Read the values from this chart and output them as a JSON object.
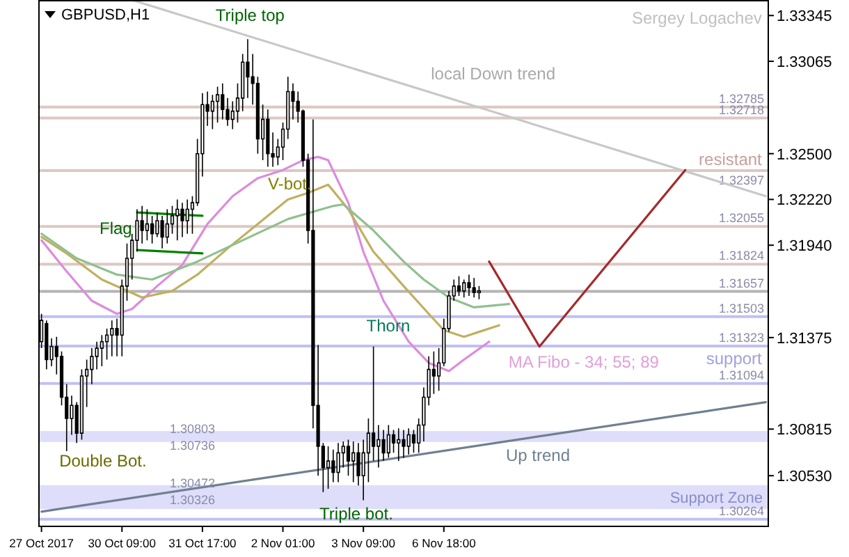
{
  "chart_data": {
    "type": "candlestick",
    "title": "GBPUSD,H1",
    "color": "#000000",
    "categories": [
      "27 Oct 2017",
      null,
      null,
      null,
      null,
      null,
      null,
      null,
      null,
      null,
      null,
      null,
      null,
      null,
      null,
      null,
      "30 Oct 09:00",
      null,
      null,
      null,
      null,
      null,
      null,
      null,
      null,
      null,
      null,
      null,
      null,
      null,
      null,
      null,
      "31 Oct 17:00",
      null,
      null,
      null,
      null,
      null,
      null,
      null,
      null,
      null,
      null,
      null,
      null,
      null,
      null,
      null,
      "2 Nov 01:00",
      null,
      null,
      null,
      null,
      null,
      null,
      null,
      null,
      null,
      null,
      null,
      null,
      null,
      null,
      null,
      "3 Nov 09:00",
      null,
      null,
      null,
      null,
      null,
      null,
      null,
      null,
      null,
      null,
      null,
      null,
      null,
      null,
      null,
      "6 Nov 18:00",
      null,
      null,
      null,
      null,
      null,
      null,
      null,
      null,
      null,
      null,
      null,
      null,
      null,
      null,
      null,
      null,
      null,
      null,
      null,
      null,
      null,
      null,
      null,
      null,
      null,
      null,
      null,
      null,
      null,
      null,
      null,
      null,
      null,
      null,
      null,
      null,
      null,
      null,
      null,
      null,
      null,
      null,
      null,
      null,
      null,
      null,
      null,
      null,
      null,
      null,
      null,
      null,
      null,
      null,
      null,
      null,
      null,
      null,
      null,
      null,
      null,
      null,
      null,
      null
    ],
    "ohlc": [
      [
        1.3135,
        1.3152,
        1.3131,
        1.3148
      ],
      [
        1.3146,
        1.3148,
        1.3118,
        1.3124
      ],
      [
        1.3124,
        1.3137,
        1.312,
        1.3132
      ],
      [
        1.3132,
        1.3138,
        1.3115,
        1.3126
      ],
      [
        1.3126,
        1.3129,
        1.3096,
        1.3101
      ],
      [
        1.3101,
        1.3109,
        1.3068,
        1.3088
      ],
      [
        1.3088,
        1.3102,
        1.3078,
        1.3096
      ],
      [
        1.3096,
        1.3098,
        1.3073,
        1.3079
      ],
      [
        1.3079,
        1.3118,
        1.3075,
        1.3114
      ],
      [
        1.3114,
        1.3124,
        1.3095,
        1.3118
      ],
      [
        1.3118,
        1.3131,
        1.3109,
        1.3126
      ],
      [
        1.3126,
        1.3135,
        1.3118,
        1.3131
      ],
      [
        1.3131,
        1.3139,
        1.312,
        1.3135
      ],
      [
        1.3135,
        1.3143,
        1.3124,
        1.3139
      ],
      [
        1.3139,
        1.3148,
        1.3126,
        1.3143
      ],
      [
        1.3143,
        1.3149,
        1.3126,
        1.3139
      ],
      [
        1.3139,
        1.3173,
        1.3126,
        1.3169
      ],
      [
        1.3169,
        1.3195,
        1.316,
        1.3186
      ],
      [
        1.3186,
        1.3201,
        1.3173,
        1.3197
      ],
      [
        1.3197,
        1.3216,
        1.319,
        1.3209
      ],
      [
        1.3209,
        1.3218,
        1.3195,
        1.3203
      ],
      [
        1.3203,
        1.3216,
        1.3197,
        1.3207
      ],
      [
        1.3207,
        1.3212,
        1.3195,
        1.3201
      ],
      [
        1.3201,
        1.3214,
        1.3199,
        1.3209
      ],
      [
        1.3209,
        1.3212,
        1.3192,
        1.3199
      ],
      [
        1.3199,
        1.3216,
        1.3195,
        1.3207
      ],
      [
        1.3207,
        1.3218,
        1.3201,
        1.3212
      ],
      [
        1.3212,
        1.3222,
        1.3197,
        1.3216
      ],
      [
        1.3216,
        1.322,
        1.3199,
        1.3209
      ],
      [
        1.3209,
        1.3222,
        1.3201,
        1.3216
      ],
      [
        1.3216,
        1.3224,
        1.3201,
        1.322
      ],
      [
        1.322,
        1.3259,
        1.3218,
        1.325
      ],
      [
        1.325,
        1.3287,
        1.3236,
        1.328
      ],
      [
        1.328,
        1.3288,
        1.3267,
        1.3276
      ],
      [
        1.3276,
        1.3286,
        1.3265,
        1.3282
      ],
      [
        1.3282,
        1.3291,
        1.3269,
        1.3286
      ],
      [
        1.3286,
        1.3293,
        1.3271,
        1.3277
      ],
      [
        1.3277,
        1.3284,
        1.3267,
        1.3271
      ],
      [
        1.3271,
        1.3282,
        1.3265,
        1.3276
      ],
      [
        1.3276,
        1.3293,
        1.3269,
        1.3284
      ],
      [
        1.3284,
        1.3311,
        1.3276,
        1.3306
      ],
      [
        1.3306,
        1.332,
        1.3284,
        1.3297
      ],
      [
        1.3297,
        1.3311,
        1.328,
        1.3293
      ],
      [
        1.3293,
        1.3297,
        1.325,
        1.3259
      ],
      [
        1.3259,
        1.328,
        1.3246,
        1.3271
      ],
      [
        1.3271,
        1.3277,
        1.3242,
        1.325
      ],
      [
        1.325,
        1.3263,
        1.3242,
        1.3248
      ],
      [
        1.3248,
        1.3259,
        1.3243,
        1.3254
      ],
      [
        1.3254,
        1.3269,
        1.3246,
        1.3265
      ],
      [
        1.3265,
        1.3297,
        1.3259,
        1.3288
      ],
      [
        1.3288,
        1.3293,
        1.3271,
        1.3282
      ],
      [
        1.3282,
        1.3288,
        1.3269,
        1.3276
      ],
      [
        1.3276,
        1.3277,
        1.3242,
        1.3246
      ],
      [
        1.3246,
        1.325,
        1.3195,
        1.3203
      ],
      [
        1.3203,
        1.3271,
        1.3082,
        1.3096
      ],
      [
        1.3096,
        1.3133,
        1.3053,
        1.3071
      ],
      [
        1.3071,
        1.3073,
        1.3043,
        1.3058
      ],
      [
        1.3058,
        1.3071,
        1.3045,
        1.3062
      ],
      [
        1.3062,
        1.3069,
        1.3049,
        1.3055
      ],
      [
        1.3055,
        1.3073,
        1.3049,
        1.3067
      ],
      [
        1.3067,
        1.3074,
        1.3058,
        1.3071
      ],
      [
        1.3071,
        1.3075,
        1.3053,
        1.3062
      ],
      [
        1.3062,
        1.3074,
        1.3049,
        1.3067
      ],
      [
        1.3067,
        1.3073,
        1.3047,
        1.3053
      ],
      [
        1.3053,
        1.3075,
        1.3038,
        1.3067
      ],
      [
        1.3067,
        1.3088,
        1.3049,
        1.3079
      ],
      [
        1.3079,
        1.3132,
        1.3062,
        1.3071
      ],
      [
        1.3071,
        1.3084,
        1.3058,
        1.3075
      ],
      [
        1.3075,
        1.3081,
        1.3062,
        1.3067
      ],
      [
        1.3067,
        1.3084,
        1.3064,
        1.3078
      ],
      [
        1.3078,
        1.3081,
        1.3067,
        1.3073
      ],
      [
        1.3073,
        1.3082,
        1.3062,
        1.3075
      ],
      [
        1.3075,
        1.3081,
        1.3064,
        1.3071
      ],
      [
        1.3071,
        1.3082,
        1.3066,
        1.3078
      ],
      [
        1.3078,
        1.3081,
        1.3067,
        1.3073
      ],
      [
        1.3073,
        1.3088,
        1.3067,
        1.3084
      ],
      [
        1.3084,
        1.3107,
        1.3074,
        1.3101
      ],
      [
        1.3101,
        1.3126,
        1.3096,
        1.3118
      ],
      [
        1.3118,
        1.3129,
        1.3103,
        1.3114
      ],
      [
        1.3114,
        1.3131,
        1.3105,
        1.3122
      ],
      [
        1.3122,
        1.3149,
        1.312,
        1.3143
      ],
      [
        1.3143,
        1.3166,
        1.3141,
        1.3163
      ],
      [
        1.3163,
        1.3173,
        1.316,
        1.3169
      ],
      [
        1.3169,
        1.3175,
        1.3163,
        1.3166
      ],
      [
        1.3166,
        1.3173,
        1.3162,
        1.3171
      ],
      [
        1.3171,
        1.3176,
        1.3163,
        1.3168
      ],
      [
        1.3168,
        1.3174,
        1.3162,
        1.3165
      ],
      [
        1.3165,
        1.3169,
        1.3161,
        1.3166
      ],
      null,
      null,
      null,
      null,
      null,
      null,
      null,
      null,
      null,
      null,
      null,
      null,
      null,
      null,
      null,
      null,
      null,
      null,
      null,
      null,
      null,
      null,
      null,
      null,
      null,
      null,
      null,
      null,
      null,
      null,
      null,
      null,
      null,
      null,
      null,
      null,
      null,
      null,
      null,
      null,
      null,
      null,
      null,
      null,
      null,
      null,
      null,
      null,
      null,
      null,
      null,
      null,
      null,
      null,
      null,
      null,
      null
    ],
    "series": [
      {
        "type": "line",
        "color": "#dc8cdc",
        "values": [
          1.3197,
          null,
          null,
          null,
          null,
          1.3178,
          null,
          null,
          null,
          null,
          1.316,
          null,
          null,
          null,
          null,
          1.3152,
          null,
          null,
          1.3155,
          null,
          null,
          null,
          null,
          1.3169,
          null,
          null,
          null,
          null,
          1.3182,
          null,
          null,
          null,
          null,
          1.3207,
          null,
          null,
          null,
          null,
          1.3224,
          null,
          null,
          null,
          null,
          1.3235,
          null,
          null,
          null,
          null,
          1.324,
          null,
          null,
          null,
          1.3246,
          null,
          null,
          1.3248,
          null,
          1.3246,
          null,
          null,
          null,
          1.322,
          null,
          null,
          1.319,
          null,
          null,
          null,
          1.316,
          null,
          null,
          null,
          null,
          1.3135,
          null,
          null,
          null,
          1.3122,
          null,
          null,
          null,
          1.3117,
          null,
          null,
          1.3124,
          null,
          null,
          null,
          null,
          1.3135,
          null,
          null,
          null,
          null,
          null,
          null,
          null,
          null,
          null,
          null,
          null,
          null,
          null,
          null,
          null,
          null,
          null,
          null,
          null,
          null,
          null,
          null,
          null,
          null,
          null,
          null,
          null,
          null,
          null,
          null,
          null,
          null,
          null,
          null,
          null,
          null,
          null,
          null,
          null,
          null,
          null,
          null,
          null,
          null,
          null,
          null,
          null,
          null,
          null,
          null,
          null,
          null,
          null,
          null,
          null
        ]
      },
      {
        "type": "line",
        "color": "#c0b060",
        "values": [
          1.3199,
          null,
          null,
          null,
          null,
          1.3189,
          null,
          null,
          null,
          null,
          null,
          null,
          1.3173,
          null,
          null,
          null,
          null,
          null,
          null,
          null,
          1.3162,
          null,
          null,
          null,
          null,
          null,
          1.3166,
          null,
          null,
          null,
          null,
          1.3176,
          null,
          null,
          null,
          null,
          null,
          1.3192,
          null,
          null,
          null,
          null,
          null,
          1.3207,
          null,
          null,
          null,
          null,
          null,
          1.3222,
          null,
          null,
          null,
          1.3226,
          null,
          null,
          null,
          1.3231,
          null,
          null,
          null,
          1.3216,
          null,
          null,
          null,
          null,
          1.319,
          null,
          null,
          null,
          null,
          null,
          1.3169,
          null,
          null,
          null,
          null,
          1.3152,
          null,
          null,
          1.3142,
          null,
          null,
          null,
          1.3138,
          null,
          null,
          1.3141,
          null,
          null,
          null,
          1.3145,
          null,
          null,
          null,
          null,
          null,
          null,
          null,
          null,
          null,
          null,
          null,
          null,
          null,
          null,
          null,
          null,
          null,
          null,
          null,
          null,
          null,
          null,
          null,
          null,
          null,
          null,
          null,
          null,
          null,
          null,
          null,
          null,
          null,
          null,
          null,
          null,
          null,
          null,
          null,
          null,
          null,
          null,
          null,
          null,
          null,
          null,
          null,
          null,
          null,
          null,
          null,
          null,
          null
        ]
      },
      {
        "type": "line",
        "color": "#90c090",
        "values": [
          1.3201,
          null,
          null,
          null,
          null,
          null,
          null,
          1.3186,
          null,
          null,
          null,
          null,
          null,
          null,
          null,
          1.3176,
          null,
          null,
          null,
          null,
          null,
          null,
          1.3173,
          null,
          null,
          null,
          null,
          null,
          null,
          null,
          null,
          1.3184,
          null,
          null,
          null,
          null,
          null,
          null,
          null,
          null,
          1.3197,
          null,
          null,
          null,
          null,
          null,
          null,
          null,
          null,
          1.321,
          null,
          null,
          null,
          null,
          null,
          null,
          null,
          null,
          1.3218,
          null,
          1.3219,
          null,
          null,
          null,
          null,
          null,
          1.3203,
          null,
          null,
          null,
          null,
          null,
          1.3184,
          null,
          null,
          null,
          1.3173,
          null,
          null,
          null,
          null,
          1.3162,
          null,
          null,
          null,
          null,
          1.3156,
          null,
          null,
          null,
          null,
          null,
          null,
          1.3158,
          null,
          null,
          null,
          null,
          null,
          null,
          null,
          null,
          null,
          null,
          null,
          null,
          null,
          null,
          null,
          null,
          null,
          null,
          null,
          null,
          null,
          null,
          null,
          null,
          null,
          null,
          null,
          null,
          null,
          null,
          null,
          null,
          null,
          null,
          null,
          null,
          null,
          null,
          null,
          null,
          null,
          null,
          null,
          null,
          null,
          null,
          null,
          null,
          null,
          null,
          null
        ]
      },
      {
        "type": "line",
        "color": "#c8c8c8",
        "values": [
          null,
          null,
          null,
          null,
          null,
          null,
          null,
          null,
          null,
          null,
          null,
          null,
          null,
          null,
          null,
          null,
          null,
          null,
          1.3344,
          null,
          null,
          null,
          null,
          null,
          null,
          null,
          null,
          null,
          null,
          null,
          null,
          null,
          null,
          null,
          null,
          null,
          null,
          null,
          null,
          null,
          null,
          null,
          null,
          null,
          null,
          null,
          null,
          null,
          null,
          null,
          null,
          null,
          null,
          null,
          null,
          null,
          null,
          null,
          null,
          null,
          null,
          null,
          null,
          null,
          null,
          null,
          null,
          null,
          null,
          null,
          null,
          null,
          null,
          null,
          null,
          null,
          null,
          null,
          null,
          null,
          null,
          null,
          null,
          null,
          null,
          null,
          null,
          null,
          null,
          null,
          null,
          null,
          null,
          null,
          null,
          null,
          null,
          null,
          null,
          null,
          null,
          null,
          null,
          null,
          null,
          null,
          null,
          null,
          null,
          null,
          null,
          null,
          null,
          null,
          null,
          null,
          null,
          null,
          null,
          null,
          null,
          null,
          null,
          null,
          null,
          null,
          null,
          null,
          null,
          null,
          null,
          null,
          null,
          null,
          null,
          null,
          null,
          null,
          null,
          null,
          null,
          null,
          null,
          null,
          1.3224
        ]
      },
      {
        "type": "line",
        "color": "#708090",
        "values": [
          1.3031,
          null,
          null,
          null,
          null,
          null,
          null,
          null,
          null,
          null,
          null,
          null,
          null,
          null,
          null,
          null,
          null,
          null,
          null,
          null,
          null,
          null,
          null,
          null,
          null,
          null,
          null,
          null,
          null,
          null,
          null,
          null,
          null,
          null,
          null,
          null,
          null,
          null,
          null,
          null,
          null,
          null,
          null,
          null,
          null,
          null,
          null,
          null,
          null,
          null,
          null,
          null,
          null,
          null,
          null,
          null,
          null,
          null,
          null,
          null,
          null,
          null,
          null,
          null,
          null,
          null,
          null,
          null,
          null,
          null,
          null,
          null,
          null,
          null,
          null,
          null,
          null,
          null,
          null,
          null,
          null,
          null,
          null,
          null,
          null,
          null,
          null,
          null,
          null,
          null,
          null,
          null,
          null,
          null,
          null,
          null,
          null,
          null,
          null,
          null,
          null,
          null,
          null,
          null,
          null,
          null,
          null,
          null,
          null,
          null,
          null,
          null,
          null,
          null,
          null,
          null,
          null,
          null,
          null,
          null,
          null,
          null,
          null,
          null,
          null,
          null,
          null,
          null,
          null,
          null,
          null,
          null,
          null,
          null,
          null,
          null,
          null,
          null,
          null,
          null,
          null,
          null,
          null,
          null,
          1.3098
        ]
      },
      {
        "type": "line",
        "color": "#a52a2a",
        "values": [
          null,
          null,
          null,
          null,
          null,
          null,
          null,
          null,
          null,
          null,
          null,
          null,
          null,
          null,
          null,
          null,
          null,
          null,
          null,
          null,
          null,
          null,
          null,
          null,
          null,
          null,
          null,
          null,
          null,
          null,
          null,
          null,
          null,
          null,
          null,
          null,
          null,
          null,
          null,
          null,
          null,
          null,
          null,
          null,
          null,
          null,
          null,
          null,
          null,
          null,
          null,
          null,
          null,
          null,
          null,
          null,
          null,
          null,
          null,
          null,
          null,
          null,
          null,
          null,
          null,
          null,
          null,
          null,
          null,
          null,
          null,
          null,
          null,
          null,
          null,
          null,
          null,
          null,
          null,
          null,
          null,
          null,
          null,
          null,
          null,
          null,
          null,
          null,
          null,
          1.3184,
          null,
          null,
          null,
          null,
          null,
          null,
          null,
          null,
          null,
          1.3132,
          null,
          null,
          null,
          null,
          null,
          null,
          null,
          null,
          null,
          null,
          null,
          null,
          null,
          null,
          null,
          null,
          null,
          null,
          null,
          null,
          null,
          null,
          null,
          null,
          null,
          null,
          null,
          null,
          1.324,
          null,
          null,
          null,
          null,
          null,
          null,
          null,
          null,
          null,
          null,
          null,
          null,
          null,
          null,
          null,
          null
        ]
      },
      {
        "type": "line",
        "color": "#008000",
        "values": [
          null,
          null,
          null,
          null,
          null,
          null,
          null,
          null,
          null,
          null,
          null,
          null,
          null,
          null,
          null,
          null,
          null,
          null,
          null,
          1.3214,
          null,
          null,
          null,
          null,
          null,
          null,
          null,
          null,
          null,
          null,
          null,
          null,
          1.3212,
          null,
          null,
          null,
          null,
          null,
          null,
          null,
          null,
          null,
          null,
          null,
          null,
          null,
          null,
          null,
          null,
          null,
          null,
          null,
          null,
          null,
          null,
          null,
          null,
          null,
          null,
          null,
          null,
          null,
          null,
          null,
          null,
          null,
          null,
          null,
          null,
          null,
          null,
          null,
          null,
          null,
          null,
          null,
          null,
          null,
          null,
          null,
          null,
          null,
          null,
          null,
          null,
          null,
          null,
          null,
          null,
          null,
          null,
          null,
          null,
          null,
          null,
          null,
          null,
          null,
          null,
          null,
          null,
          null,
          null,
          null,
          null,
          null,
          null,
          null,
          null,
          null,
          null,
          null,
          null,
          null,
          null,
          null,
          null,
          null,
          null,
          null,
          null,
          null,
          null,
          null,
          null,
          null,
          null,
          null,
          null,
          null,
          null,
          null,
          null,
          null,
          null,
          null,
          null,
          null,
          null,
          null,
          null,
          null,
          null,
          null,
          null
        ]
      },
      {
        "type": "line",
        "color": "#008000",
        "values": [
          null,
          null,
          null,
          null,
          null,
          null,
          null,
          null,
          null,
          null,
          null,
          null,
          null,
          null,
          null,
          null,
          null,
          null,
          null,
          1.3191,
          null,
          null,
          null,
          null,
          null,
          null,
          null,
          null,
          null,
          null,
          null,
          null,
          1.3189,
          null,
          null,
          null,
          null,
          null,
          null,
          null,
          null,
          null,
          null,
          null,
          null,
          null,
          null,
          null,
          null,
          null,
          null,
          null,
          null,
          null,
          null,
          null,
          null,
          null,
          null,
          null,
          null,
          null,
          null,
          null,
          null,
          null,
          null,
          null,
          null,
          null,
          null,
          null,
          null,
          null,
          null,
          null,
          null,
          null,
          null,
          null,
          null,
          null,
          null,
          null,
          null,
          null,
          null,
          null,
          null,
          null,
          null,
          null,
          null,
          null,
          null,
          null,
          null,
          null,
          null,
          null,
          null,
          null,
          null,
          null,
          null,
          null,
          null,
          null,
          null,
          null,
          null,
          null,
          null,
          null,
          null,
          null,
          null,
          null,
          null,
          null,
          null,
          null,
          null,
          null,
          null,
          null,
          null,
          null,
          null,
          null,
          null,
          null,
          null,
          null,
          null,
          null,
          null,
          null,
          null,
          null,
          null,
          null,
          null,
          null,
          null
        ]
      }
    ],
    "ylim": [
      1.3022,
      1.3344
    ],
    "yticks": [
      1.33345,
      1.33065,
      {
        "value": 1.325,
        "label": "1.32500"
      },
      {
        "value": 1.3222,
        "label": "1.32220"
      },
      {
        "value": 1.3194,
        "label": "1.31940"
      },
      1.31375,
      1.30815,
      {
        "value": 1.3053,
        "label": "1.30530"
      }
    ],
    "ref_lines": [
      {
        "axis": "y",
        "value": 1.32785,
        "label": "1.32785",
        "color": "#dcc8c4"
      },
      {
        "axis": "y",
        "value": 1.32718,
        "label": "1.32718",
        "color": "#dcc8c4"
      },
      {
        "axis": "y",
        "value": 1.32397,
        "label": "1.32397",
        "color": "#dcc8c4"
      },
      {
        "axis": "y",
        "value": 1.32055,
        "label": "1.32055",
        "color": "#dcc8c4"
      },
      {
        "axis": "y",
        "value": 1.31824,
        "label": "1.31824",
        "color": "#dcc8c4"
      },
      {
        "axis": "y",
        "value": 1.31657,
        "label": "1.31657",
        "color": "#b4b4b4"
      },
      {
        "axis": "y",
        "value": 1.31503,
        "label": "1.31503",
        "color": "#c0c0f4"
      },
      {
        "axis": "y",
        "value": 1.31323,
        "label": "1.31323",
        "color": "#c0c0f4"
      },
      {
        "axis": "y",
        "value": 1.31094,
        "label": "1.31094",
        "color": "#c0c0f4"
      },
      {
        "axis": "y",
        "value": 1.30264,
        "label": "1.30264",
        "color": "#c0c0f4"
      }
    ],
    "bands": [
      {
        "axis": "y",
        "from": 1.30736,
        "to": 1.30803,
        "label": null,
        "color": "#dedefa"
      },
      {
        "axis": "y",
        "from": 1.30326,
        "to": 1.30472,
        "label": "Support Zone",
        "color": "#dedefa"
      }
    ],
    "annotations": [
      "Triple top",
      "Flag",
      "V-bot.",
      "Double Bot.",
      "Triple bot.",
      "Thorn",
      "local Down trend",
      "Up trend",
      "MA Fibo - 34; 55; 89",
      {
        "text": "resistant",
        "y": 1.32397
      },
      {
        "text": "support",
        "y": 1.31323
      },
      "1.30803",
      "1.30736",
      "1.30472",
      "1.30326",
      "Sergey Logachev"
    ]
  }
}
